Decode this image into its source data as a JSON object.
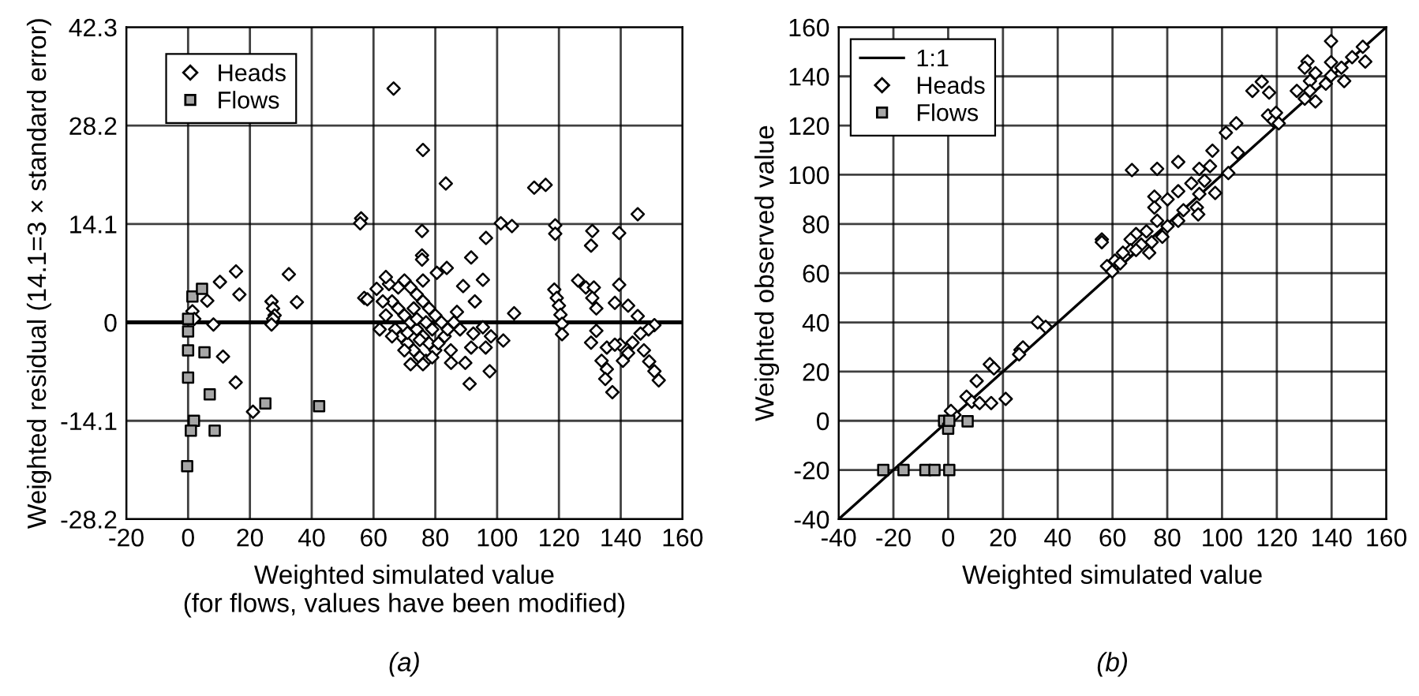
{
  "chart_data": [
    {
      "type": "scatter",
      "xlabel": "Weighted simulated value\n(for flows, values have been modified)",
      "ylabel": "Weighted residual (14.1=3 × standard error)",
      "xlim": [
        -20,
        160
      ],
      "xticks": [
        -20,
        0,
        20,
        40,
        60,
        80,
        100,
        120,
        140,
        160
      ],
      "ylim": [
        -28.2,
        42.3
      ],
      "yticks": [
        -28.2,
        -14.1,
        0,
        14.1,
        28.2,
        42.3
      ],
      "grid": true,
      "legend": "top left",
      "ref_lines": [
        {
          "axis": "y",
          "value": 0
        }
      ],
      "annotations": [
        "(a)"
      ],
      "series": [
        {
          "name": "Heads",
          "color": "#000000",
          "marker": "diamond",
          "x": [
            66.5,
            56,
            55.7,
            15.5,
            10.3,
            16.6,
            6.2,
            1.4,
            2,
            8.2,
            11.3,
            15.4,
            21,
            32.6,
            35.2,
            27,
            27.5,
            28,
            27.5,
            27,
            57,
            58,
            76,
            83.4,
            112,
            115.7,
            145.5,
            101.2,
            104.8,
            118.8,
            118.8,
            130.8,
            130.4,
            139.5,
            75.7,
            96.4,
            75.7,
            75.7,
            91.6,
            80.5,
            83.7,
            76,
            89,
            95.4,
            92.8,
            105.5,
            95.4,
            102,
            92.3,
            91.6,
            89.7,
            85.1,
            96.3,
            98,
            97.6,
            91.1,
            118.5,
            119.3,
            120,
            120.5,
            121,
            121,
            126.2,
            128.7,
            131.3,
            130.8,
            132.1,
            139.5,
            138.1,
            142.4,
            145.5,
            150.9,
            149,
            132.1,
            130.4,
            135.5,
            139.8,
            143.8,
            146.4,
            147.5,
            149.2,
            150.9,
            152.3,
            133.8,
            135.5,
            135,
            137.3,
            140.7,
            142.4,
            138.1,
            66,
            68,
            70,
            72,
            74,
            76,
            78,
            80,
            67,
            69,
            71,
            73,
            75,
            77,
            79,
            81,
            83,
            84,
            82,
            80,
            78,
            76,
            74,
            72,
            70,
            68,
            65,
            64,
            61,
            63,
            64,
            62,
            66,
            70,
            72,
            76,
            85,
            86,
            87,
            88,
            74,
            77,
            79,
            75,
            73,
            71
          ],
          "values": [
            33.5,
            14.9,
            14.2,
            7.3,
            5.8,
            4.0,
            3.1,
            1.6,
            0.5,
            -0.3,
            -4.9,
            -8.6,
            -12.8,
            6.9,
            2.9,
            3,
            2,
            1,
            0.5,
            -0.3,
            3.5,
            3.3,
            24.7,
            19.9,
            19.3,
            19.7,
            15.5,
            14.2,
            13.8,
            13.9,
            12.7,
            13.1,
            11.0,
            12.8,
            13.1,
            12.1,
            9.6,
            9.0,
            9.3,
            7.1,
            7.8,
            6.0,
            5.2,
            6.1,
            3.0,
            1.3,
            -0.7,
            -2.6,
            -1.6,
            -3.6,
            -5.8,
            -5.8,
            -3.6,
            -2.0,
            -7.0,
            -8.8,
            4.7,
            3.5,
            2.4,
            1.1,
            -0.2,
            -1.7,
            6.0,
            5.0,
            5.0,
            3.5,
            2.0,
            5.4,
            2.8,
            2.4,
            0.9,
            -0.4,
            -1,
            -1.2,
            -2.9,
            -3.6,
            -3.2,
            -2.9,
            -1.6,
            -4,
            -5.6,
            -7.0,
            -8.3,
            -5.5,
            -6.7,
            -8.1,
            -10.0,
            -5.5,
            -4.4,
            -3.2,
            3,
            2,
            1,
            0,
            -1,
            -2,
            -3,
            -4,
            -1,
            -2,
            -3,
            -4,
            -5,
            -5.5,
            -5,
            -3,
            -2,
            -1,
            0,
            1,
            2,
            3,
            4,
            5,
            6,
            5,
            5.5,
            6.5,
            4.8,
            3,
            1,
            -1,
            -2,
            -4,
            -6,
            -6,
            -4,
            0,
            1.5,
            -1,
            0.5,
            0,
            -1,
            -2.5,
            2,
            -1.5
          ]
        },
        {
          "name": "Flows",
          "color": "#a6a6a6",
          "marker": "square",
          "x": [
            1.4,
            4.5,
            0,
            0,
            0,
            5.3,
            0,
            7,
            1.9,
            0.9,
            8.6,
            -0.3,
            25,
            42.4
          ],
          "values": [
            3.7,
            4.8,
            0.5,
            -1.3,
            -4.0,
            -4.3,
            -7.9,
            -10.3,
            -14.1,
            -15.5,
            -15.5,
            -20.6,
            -11.6,
            -12.0
          ]
        }
      ]
    },
    {
      "type": "scatter",
      "xlabel": "Weighted simulated value",
      "ylabel": "Weighted observed value",
      "xlim": [
        -40,
        160
      ],
      "xticks": [
        -40,
        -20,
        0,
        20,
        40,
        60,
        80,
        100,
        120,
        140,
        160
      ],
      "ylim": [
        -40,
        160
      ],
      "yticks": [
        -40,
        -20,
        0,
        20,
        40,
        60,
        80,
        100,
        120,
        140,
        160
      ],
      "grid": true,
      "legend": "top left",
      "annotations": [
        "(b)"
      ],
      "series": [
        {
          "name": "1:1",
          "type": "line",
          "color": "#000000",
          "marker": "none",
          "x": [
            -40,
            160
          ],
          "values": [
            -40,
            160
          ]
        },
        {
          "name": "Heads",
          "color": "#000000",
          "marker": "diamond",
          "x": [
            32.7,
            35.6,
            26.4,
            27.3,
            25.9,
            15.2,
            16.7,
            10.4,
            6.7,
            8.6,
            11.5,
            15.7,
            21,
            2.3,
            1,
            139.8,
            151.4,
            152.3,
            131.2,
            130.2,
            139.8,
            143.6,
            147.5,
            134.1,
            139.8,
            132.1,
            137.9,
            144.6,
            130.2,
            134.1,
            127.3,
            132.1,
            111.1,
            114.5,
            117.2,
            116.8,
            118.8,
            119.7,
            120.7,
            101.4,
            105.2,
            105.8,
            96.5,
            102.3,
            67.1,
            76.3,
            84,
            91.7,
            95.6,
            88.8,
            93.6,
            97.5,
            84,
            75.3,
            80.1,
            91.7,
            90.8,
            91.3,
            85.9,
            84,
            80.1,
            76.3,
            75.3,
            78.2,
            72.4,
            68.6,
            66.6,
            70.5,
            74.3,
            73.4,
            66.6,
            63.8,
            60.9,
            58,
            59.9,
            62.8,
            56.1,
            56.1,
            68.6
          ],
          "values": [
            40,
            38.2,
            28.8,
            29.8,
            27,
            23,
            21.3,
            16.2,
            9.8,
            7.8,
            7.2,
            7.2,
            8.9,
            2.4,
            4,
            154.3,
            152,
            146,
            146.1,
            143.5,
            145.7,
            143.5,
            147.8,
            141.3,
            140.3,
            138.1,
            137,
            138.1,
            130.9,
            129.8,
            134.1,
            134.1,
            134.1,
            137.8,
            133.4,
            124.1,
            121.9,
            125.2,
            120.9,
            117.1,
            120.9,
            108.9,
            109.8,
            100.7,
            101.9,
            102.4,
            105.2,
            102.4,
            103.5,
            96.5,
            97.6,
            92.6,
            93.3,
            91.1,
            90,
            92.2,
            86.7,
            83.9,
            85.6,
            81.3,
            79.1,
            81.3,
            86.7,
            74.8,
            77,
            75.9,
            73.7,
            71.6,
            72.6,
            68.3,
            69.4,
            68.3,
            65.1,
            62.9,
            60.7,
            64,
            73.7,
            72.6,
            69.4
          ]
        },
        {
          "name": "Flows",
          "color": "#a6a6a6",
          "marker": "square",
          "x": [
            -1.5,
            0,
            7.1,
            0.4,
            -23.7,
            -16.3,
            -8.3,
            -5,
            0.4
          ],
          "values": [
            0,
            -3.2,
            -0.2,
            0,
            -20,
            -20,
            -20,
            -20,
            -20
          ]
        }
      ]
    }
  ]
}
